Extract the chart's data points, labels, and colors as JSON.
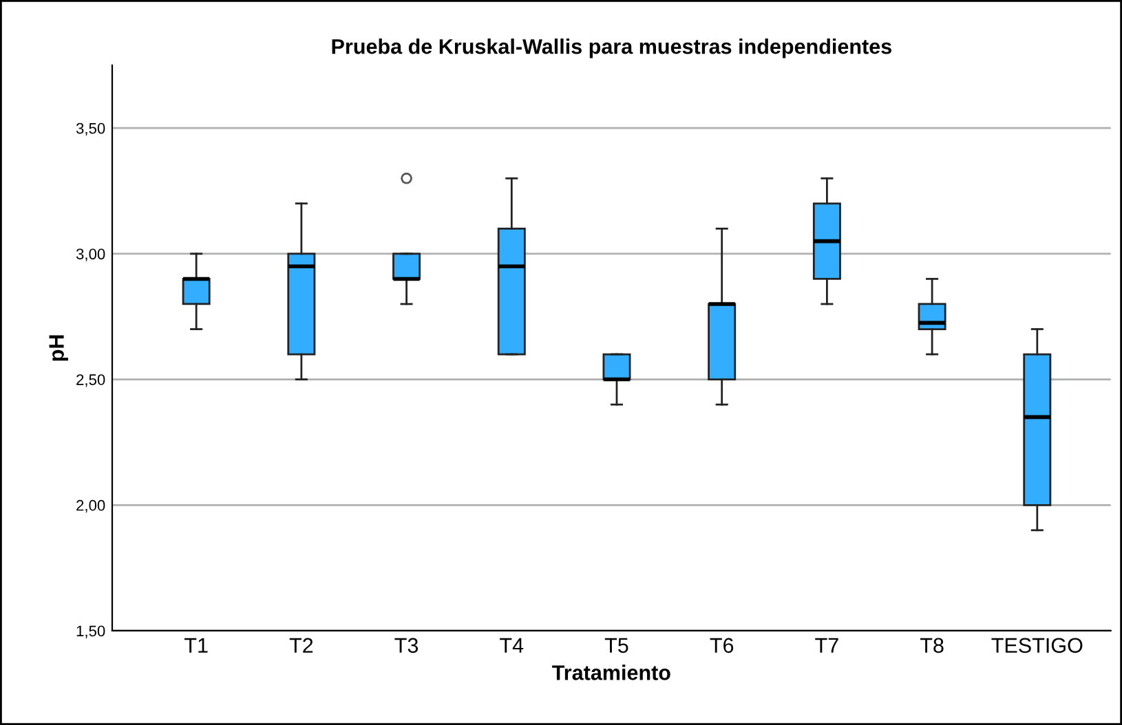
{
  "chart_data": {
    "type": "box",
    "title": "Prueba de Kruskal-Wallis para muestras independientes",
    "xlabel": "Tratamiento",
    "ylabel": "pH",
    "categories": [
      "T1",
      "T2",
      "T3",
      "T4",
      "T5",
      "T6",
      "T7",
      "T8",
      "TESTIGO"
    ],
    "color": "#33adff",
    "boxes": [
      {
        "low": 2.7,
        "q1": 2.8,
        "median": 2.9,
        "q3": 2.9,
        "high": 3.0
      },
      {
        "low": 2.5,
        "q1": 2.6,
        "median": 2.95,
        "q3": 3.0,
        "high": 3.2
      },
      {
        "low": 2.8,
        "q1": 2.9,
        "median": 2.9,
        "q3": 3.0,
        "high": 3.0,
        "outliers": [
          3.3
        ]
      },
      {
        "low": 2.6,
        "q1": 2.6,
        "median": 2.95,
        "q3": 3.1,
        "high": 3.3
      },
      {
        "low": 2.4,
        "q1": 2.5,
        "median": 2.5,
        "q3": 2.6,
        "high": 2.6
      },
      {
        "low": 2.4,
        "q1": 2.5,
        "median": 2.8,
        "q3": 2.8,
        "high": 3.1
      },
      {
        "low": 2.8,
        "q1": 2.9,
        "median": 3.05,
        "q3": 3.2,
        "high": 3.3
      },
      {
        "low": 2.6,
        "q1": 2.7,
        "median": 2.725,
        "q3": 2.8,
        "high": 2.9
      },
      {
        "low": 1.9,
        "q1": 2.0,
        "median": 2.35,
        "q3": 2.6,
        "high": 2.7
      }
    ],
    "ylim": [
      1.5,
      3.75
    ],
    "yticks": [
      {
        "value": 1.5,
        "label": "1,50"
      },
      {
        "value": 2.0,
        "label": "2,00"
      },
      {
        "value": 2.5,
        "label": "2,50"
      },
      {
        "value": 3.0,
        "label": "3,00"
      },
      {
        "value": 3.5,
        "label": "3,50"
      }
    ],
    "grid": "y"
  }
}
